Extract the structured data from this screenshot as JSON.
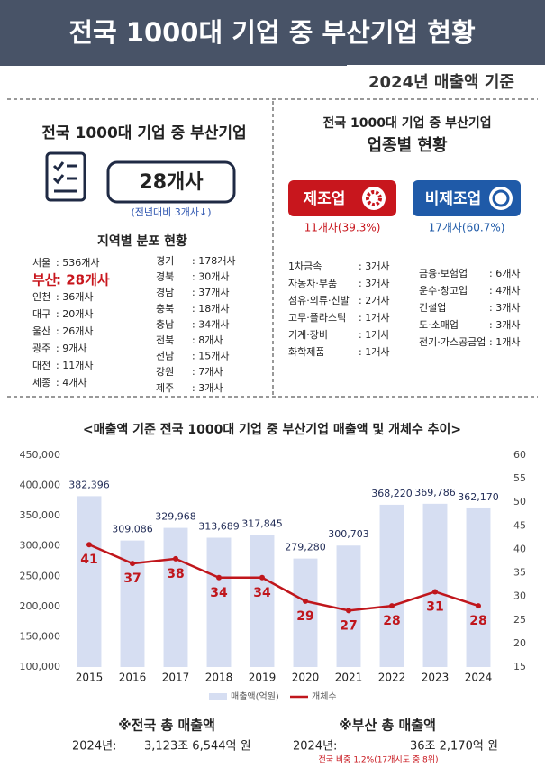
{
  "header": {
    "title": "전국 1000대 기업 중 부산기업 현황",
    "subtitle": "2024년 매출액 기준"
  },
  "left": {
    "title": "전국 1000대 기업 중 부산기업",
    "total": "28개사",
    "change": "(전년대비 3개사↓)",
    "region_title": "지역별 분포 현황",
    "regions_col1": [
      {
        "name": "서울",
        "count": ": 536개사"
      },
      {
        "name": "부산",
        "count": ": 28개사"
      },
      {
        "name": "인천",
        "count": ": 36개사"
      },
      {
        "name": "대구",
        "count": ": 20개사"
      },
      {
        "name": "울산",
        "count": ": 26개사"
      },
      {
        "name": "광주",
        "count": ": 9개사"
      },
      {
        "name": "대전",
        "count": ": 11개사"
      },
      {
        "name": "세종",
        "count": ": 4개사"
      }
    ],
    "regions_col2": [
      {
        "name": "경기",
        "count": ": 178개사"
      },
      {
        "name": "경북",
        "count": ": 30개사"
      },
      {
        "name": "경남",
        "count": ": 37개사"
      },
      {
        "name": "충북",
        "count": ": 18개사"
      },
      {
        "name": "충남",
        "count": ": 34개사"
      },
      {
        "name": "전북",
        "count": ": 8개사"
      },
      {
        "name": "전남",
        "count": ": 15개사"
      },
      {
        "name": "강원",
        "count": ": 7개사"
      },
      {
        "name": "제주",
        "count": ": 3개사"
      }
    ]
  },
  "right": {
    "title": "전국 1000대 기업 중 부산기업",
    "subtitle": "업종별 현황",
    "manufacturing": {
      "label": "제조업",
      "summary": "11개사(39.3%)",
      "items": [
        {
          "name": "1차금속",
          "count": ": 3개사"
        },
        {
          "name": "자동차·부품",
          "count": ": 3개사"
        },
        {
          "name": "섬유·의류·신발",
          "count": ": 2개사"
        },
        {
          "name": "고무·플라스틱",
          "count": ": 1개사"
        },
        {
          "name": "기계·장비",
          "count": ": 1개사"
        },
        {
          "name": "화학제품",
          "count": ": 1개사"
        }
      ]
    },
    "non_manufacturing": {
      "label": "비제조업",
      "summary": "17개사(60.7%)",
      "items": [
        {
          "name": "금융·보험업",
          "count": ": 6개사"
        },
        {
          "name": "운수·창고업",
          "count": ": 4개사"
        },
        {
          "name": "건설업",
          "count": ": 3개사"
        },
        {
          "name": "도·소매업",
          "count": ": 3개사"
        },
        {
          "name": "전기·가스공급업",
          "count": ": 1개사"
        }
      ]
    }
  },
  "chart_data": {
    "type": "bar",
    "title": "<매출액 기준 전국 1000대 기업 중 부산기업 매출액 및 개체수 추이>",
    "categories": [
      "2015",
      "2016",
      "2017",
      "2018",
      "2019",
      "2020",
      "2021",
      "2022",
      "2023",
      "2024"
    ],
    "series": [
      {
        "name": "매출액(억원)",
        "color": "#d6def2",
        "values": [
          382396,
          309086,
          329968,
          313689,
          317845,
          279280,
          300703,
          368220,
          369786,
          362170
        ],
        "value_labels": [
          "382,396",
          "309,086",
          "329,968",
          "313,689",
          "317,845",
          "279,280",
          "300,703",
          "368,220",
          "369,786",
          "362,170"
        ]
      },
      {
        "name": "개체수",
        "color": "#c0161c",
        "type": "line",
        "axis": "y2",
        "values": [
          41,
          37,
          38,
          34,
          34,
          29,
          27,
          28,
          31,
          28
        ]
      }
    ],
    "ylim": [
      100000,
      450000
    ],
    "yticks": [
      {
        "value": 100000,
        "label": "100,000"
      },
      {
        "value": 150000,
        "label": "150,000"
      },
      {
        "value": 200000,
        "label": "200,000"
      },
      {
        "value": 250000,
        "label": "250,000"
      },
      {
        "value": 300000,
        "label": "300,000"
      },
      {
        "value": 350000,
        "label": "350,000"
      },
      {
        "value": 400000,
        "label": "400,000"
      },
      {
        "value": 450000,
        "label": "450,000"
      }
    ],
    "y2lim": [
      15,
      60
    ],
    "y2ticks": [
      15,
      20,
      25,
      30,
      35,
      40,
      45,
      50,
      55,
      60
    ],
    "legend": "bottom",
    "grid": false
  },
  "footer": {
    "national": {
      "title": "※전국 총 매출액",
      "year": "2024년:",
      "amount": "3,123조 6,544억 원"
    },
    "busan": {
      "title": "※부산 총 매출액",
      "year": "2024년:",
      "amount": "36조 2,170억 원",
      "note": "전국 비중 1.2%(17개시도 중 8위)"
    }
  }
}
